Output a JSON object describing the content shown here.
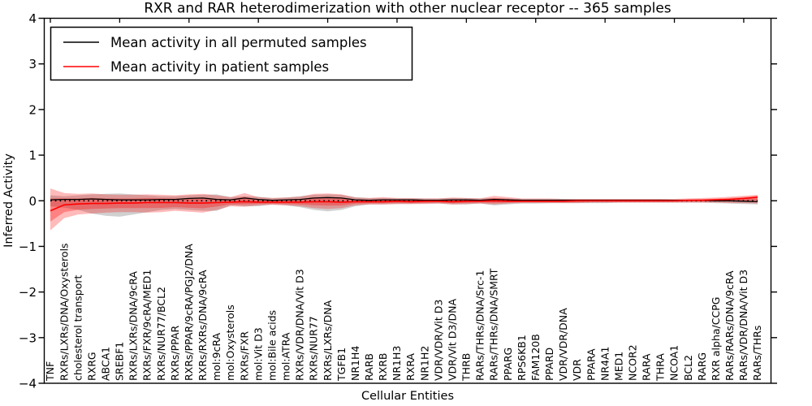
{
  "figure": {
    "title": "RXR and RAR heterodimerization with other nuclear receptor -- 365 samples"
  },
  "legend": {
    "entries": [
      {
        "label": "Mean activity in all permuted samples",
        "color": "#000000"
      },
      {
        "label": "Mean activity in patient samples",
        "color": "#ff0000"
      }
    ]
  },
  "chart_data": {
    "type": "line",
    "title": "RXR and RAR heterodimerization with other nuclear receptor -- 365 samples",
    "xlabel": "Cellular Entities",
    "ylabel": "Inferred Activity",
    "ylim": [
      -4,
      4
    ],
    "ytick_values": [
      4,
      3,
      2,
      1,
      0,
      -1,
      -2,
      -3,
      -4
    ],
    "ytick_labels": [
      "4",
      "3",
      "2",
      "1",
      "0",
      "−1",
      "−2",
      "−3",
      "−4"
    ],
    "grid": false,
    "legend_position": "upper left",
    "zero_line_style": "dotted",
    "categories": [
      "TNF",
      "RXRs/LXRs/DNA/Oxysterols",
      "cholesterol transport",
      "RXRG",
      "ABCA1",
      "SREBF1",
      "RXRs/LXRs/DNA/9cRA",
      "RXRs/FXR/9cRA/MED1",
      "RXRs/NUR77/BCL2",
      "RXRs/PPAR",
      "RXRs/PPAR/9cRA/PGJ2/DNA",
      "RXRs/RXRs/DNA/9cRA",
      "mol:9cRA",
      "mol:Oxysterols",
      "RXRs/FXR",
      "mol:Vit D3",
      "mol:Bile acids",
      "mol:ATRA",
      "RXRs/VDR/DNA/Vit D3",
      "RXRs/NUR77",
      "RXRs/LXRs/DNA",
      "TGFB1",
      "NR1H4",
      "RARB",
      "RXRB",
      "NR1H3",
      "RXRA",
      "NR1H2",
      "VDR/VDR/Vit D3",
      "VDR/Vit D3/DNA",
      "THRB",
      "RARs/THRs/DNA/Src-1",
      "RARs/THRs/DNA/SMRT",
      "PPARG",
      "RPS6KB1",
      "FAM120B",
      "PPARD",
      "VDR/VDR/DNA",
      "VDR",
      "PPARA",
      "NR4A1",
      "MED1",
      "NCOR2",
      "RARA",
      "THRA",
      "NCOA1",
      "BCL2",
      "RARG",
      "RXR alpha/CCPG",
      "RARs/RARs/DNA/9cRA",
      "RARs/VDR/DNA/Vit D3",
      "RARs/THRs"
    ],
    "series": [
      {
        "name": "Mean activity in all permuted samples",
        "color": "#000000",
        "linewidth": 1.3,
        "values": [
          0.02,
          0.03,
          0.03,
          0.04,
          0.03,
          0.02,
          0.02,
          0.02,
          0.03,
          0.03,
          0.05,
          0.06,
          0.03,
          0.02,
          0.06,
          0.03,
          0.01,
          0.02,
          0.03,
          0.06,
          0.07,
          0.06,
          0.02,
          0.01,
          0.02,
          0.02,
          0.02,
          0.01,
          0.01,
          0.02,
          0.02,
          0.01,
          0.03,
          0.02,
          0.01,
          0.01,
          0.01,
          0.01,
          0.01,
          0.01,
          0.01,
          0.01,
          0.01,
          0.01,
          0.01,
          0.01,
          0.01,
          0.01,
          0.0,
          0.0,
          -0.01,
          -0.02
        ]
      },
      {
        "name": "Mean activity in patient samples",
        "color": "#ff0000",
        "linewidth": 1.6,
        "values": [
          -0.22,
          -0.09,
          -0.07,
          -0.06,
          -0.06,
          -0.05,
          -0.05,
          -0.04,
          -0.04,
          -0.04,
          -0.05,
          -0.05,
          -0.04,
          -0.03,
          -0.02,
          -0.03,
          -0.03,
          -0.03,
          -0.03,
          -0.02,
          -0.02,
          -0.03,
          -0.02,
          -0.02,
          -0.02,
          -0.01,
          -0.02,
          -0.01,
          -0.01,
          -0.02,
          -0.01,
          -0.01,
          0.0,
          -0.01,
          -0.01,
          -0.01,
          -0.01,
          -0.01,
          0.0,
          0.0,
          0.0,
          0.0,
          0.0,
          0.0,
          0.0,
          0.0,
          0.01,
          0.01,
          0.02,
          0.03,
          0.05,
          0.08
        ]
      }
    ],
    "bands": [
      {
        "name": "permuted-samples-range",
        "color": "#969696",
        "opacity": 0.45,
        "upper": [
          0.12,
          0.1,
          0.12,
          0.14,
          0.15,
          0.16,
          0.14,
          0.12,
          0.1,
          0.1,
          0.12,
          0.13,
          0.14,
          0.08,
          0.1,
          0.09,
          0.06,
          0.07,
          0.1,
          0.13,
          0.14,
          0.13,
          0.08,
          0.06,
          0.06,
          0.05,
          0.05,
          0.05,
          0.05,
          0.06,
          0.06,
          0.05,
          0.06,
          0.05,
          0.04,
          0.04,
          0.04,
          0.04,
          0.04,
          0.04,
          0.04,
          0.04,
          0.04,
          0.04,
          0.04,
          0.03,
          0.03,
          0.03,
          0.04,
          0.04,
          0.05,
          0.05
        ],
        "lower": [
          -0.12,
          -0.15,
          -0.2,
          -0.28,
          -0.33,
          -0.35,
          -0.3,
          -0.25,
          -0.2,
          -0.18,
          -0.2,
          -0.22,
          -0.22,
          -0.1,
          -0.12,
          -0.12,
          -0.08,
          -0.1,
          -0.14,
          -0.2,
          -0.23,
          -0.2,
          -0.12,
          -0.08,
          -0.08,
          -0.07,
          -0.07,
          -0.06,
          -0.06,
          -0.08,
          -0.08,
          -0.06,
          -0.1,
          -0.08,
          -0.06,
          -0.06,
          -0.05,
          -0.05,
          -0.05,
          -0.05,
          -0.05,
          -0.04,
          -0.04,
          -0.04,
          -0.04,
          -0.04,
          -0.04,
          -0.04,
          -0.05,
          -0.06,
          -0.07,
          -0.08
        ]
      },
      {
        "name": "patient-samples-range",
        "color": "#ff0000",
        "opacity": 0.27,
        "inner_scale": 0.55,
        "inner_opacity": 0.3,
        "series_ref": 1,
        "upper": [
          0.27,
          0.17,
          0.15,
          0.16,
          0.14,
          0.13,
          0.13,
          0.14,
          0.13,
          0.12,
          0.14,
          0.15,
          0.12,
          0.08,
          0.17,
          0.08,
          0.06,
          0.07,
          0.09,
          0.15,
          0.16,
          0.14,
          0.07,
          0.06,
          0.08,
          0.06,
          0.06,
          0.05,
          0.05,
          0.07,
          0.06,
          0.05,
          0.11,
          0.08,
          0.05,
          0.05,
          0.05,
          0.04,
          0.04,
          0.04,
          0.04,
          0.04,
          0.04,
          0.04,
          0.04,
          0.04,
          0.05,
          0.06,
          0.07,
          0.09,
          0.11,
          0.13
        ],
        "lower": [
          -0.65,
          -0.38,
          -0.3,
          -0.28,
          -0.26,
          -0.25,
          -0.25,
          -0.26,
          -0.25,
          -0.22,
          -0.24,
          -0.26,
          -0.2,
          -0.12,
          -0.13,
          -0.1,
          -0.09,
          -0.1,
          -0.12,
          -0.16,
          -0.18,
          -0.16,
          -0.1,
          -0.08,
          -0.08,
          -0.07,
          -0.07,
          -0.07,
          -0.06,
          -0.08,
          -0.07,
          -0.06,
          -0.08,
          -0.06,
          -0.05,
          -0.05,
          -0.05,
          -0.05,
          -0.05,
          -0.04,
          -0.04,
          -0.04,
          -0.04,
          -0.04,
          -0.04,
          -0.04,
          -0.04,
          -0.04,
          -0.04,
          -0.05,
          -0.05,
          -0.06
        ]
      }
    ]
  }
}
